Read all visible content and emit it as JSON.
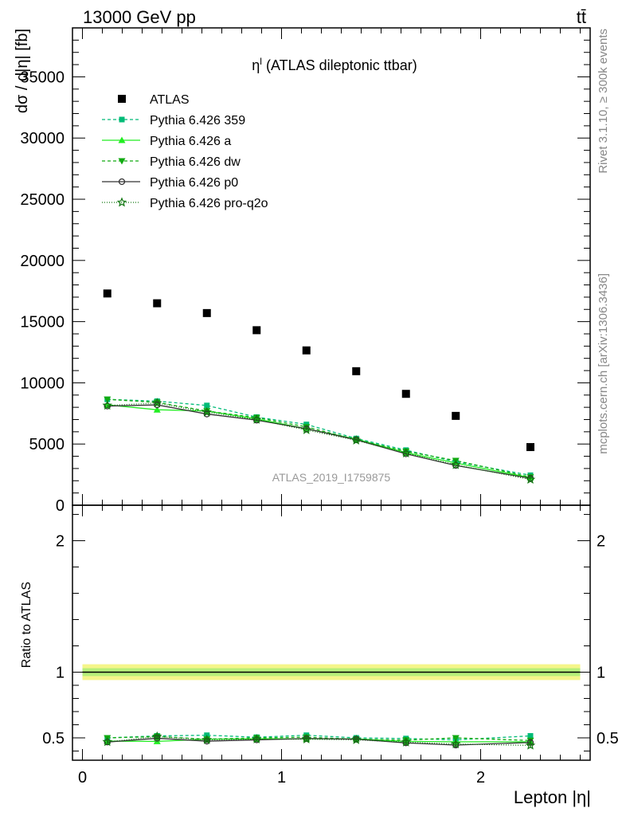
{
  "header": {
    "left": "13000 GeV pp",
    "right": "tt̄"
  },
  "side_text": {
    "rivet": "Rivet 3.1.10, ≥ 300k events",
    "mcplots": "mcplots.cern.ch [arXiv:1306.3436]"
  },
  "chart_data": {
    "type": "scatter",
    "title": "η^l (ATLAS dileptonic ttbar)",
    "title_main": "η",
    "title_sup": "l",
    "title_rest": " (ATLAS dileptonic ttbar)",
    "analysis_id": "ATLAS_2019_I1759875",
    "xlabel": "Lepton |η|",
    "ylabel": "dσ / d|η| [fb]",
    "ratio_ylabel": "Ratio to ATLAS",
    "xlim": [
      -0.05,
      2.55
    ],
    "ylim": [
      0,
      39000
    ],
    "ratio_ylim": [
      0.33,
      2.27
    ],
    "x_ticks": [
      {
        "value": 0,
        "label": "0"
      },
      {
        "value": 1,
        "label": "1"
      },
      {
        "value": 2,
        "label": "2"
      }
    ],
    "y_ticks": [
      {
        "value": 0,
        "label": "0"
      },
      {
        "value": 5000,
        "label": "5000"
      },
      {
        "value": 10000,
        "label": "10000"
      },
      {
        "value": 15000,
        "label": "15000"
      },
      {
        "value": 20000,
        "label": "20000"
      },
      {
        "value": 25000,
        "label": "25000"
      },
      {
        "value": 30000,
        "label": "30000"
      },
      {
        "value": 35000,
        "label": "35000"
      }
    ],
    "ratio_y_ticks": [
      {
        "value": 0.5,
        "label": "0.5"
      },
      {
        "value": 1,
        "label": "1"
      },
      {
        "value": 2,
        "label": "2"
      }
    ],
    "bin_edges": [
      0,
      0.25,
      0.5,
      0.75,
      1.0,
      1.25,
      1.5,
      1.75,
      2.0,
      2.5
    ],
    "x": [
      0.125,
      0.375,
      0.625,
      0.875,
      1.125,
      1.375,
      1.625,
      1.875,
      2.25
    ],
    "data": {
      "name": "ATLAS",
      "color": "#000000",
      "values": [
        17300,
        16500,
        15700,
        14300,
        12650,
        10950,
        9100,
        7300,
        4750
      ],
      "band_inner": 0.03,
      "band_outer": 0.06
    },
    "series": [
      {
        "name": "Pythia 6.426 359",
        "color": "#00bb77",
        "dash": "4,3",
        "marker": "square",
        "values": [
          8650,
          8500,
          8150,
          7200,
          6600,
          5450,
          4500,
          3550,
          2450
        ],
        "ratio": [
          0.5,
          0.515,
          0.52,
          0.505,
          0.52,
          0.5,
          0.495,
          0.485,
          0.515
        ],
        "ratio_err": [
          0.012,
          0.012,
          0.013,
          0.013,
          0.014,
          0.015,
          0.017,
          0.02,
          0.02
        ]
      },
      {
        "name": "Pythia 6.426 a",
        "color": "#22ee22",
        "dash": "",
        "marker": "triangle-up",
        "values": [
          8200,
          7800,
          7700,
          7050,
          6250,
          5400,
          4300,
          3450,
          2250
        ],
        "ratio": [
          0.475,
          0.473,
          0.49,
          0.493,
          0.493,
          0.493,
          0.473,
          0.47,
          0.47
        ],
        "ratio_err": [
          0.012,
          0.012,
          0.013,
          0.013,
          0.014,
          0.015,
          0.017,
          0.02,
          0.02
        ]
      },
      {
        "name": "Pythia 6.426 dw",
        "color": "#11aa11",
        "dash": "4,3",
        "marker": "triangle-down",
        "values": [
          8650,
          8400,
          7700,
          7150,
          6400,
          5350,
          4400,
          3650,
          2300
        ],
        "ratio": [
          0.5,
          0.51,
          0.49,
          0.5,
          0.505,
          0.49,
          0.483,
          0.5,
          0.48
        ],
        "ratio_err": [
          0.012,
          0.012,
          0.013,
          0.013,
          0.014,
          0.015,
          0.017,
          0.02,
          0.02
        ]
      },
      {
        "name": "Pythia 6.426 p0",
        "color": "#333333",
        "dash": "",
        "marker": "circle-open",
        "values": [
          8100,
          8200,
          7450,
          6950,
          6250,
          5350,
          4200,
          3250,
          2200
        ],
        "ratio": [
          0.468,
          0.497,
          0.475,
          0.485,
          0.495,
          0.49,
          0.462,
          0.445,
          0.465
        ],
        "ratio_err": [
          0.012,
          0.012,
          0.013,
          0.013,
          0.014,
          0.015,
          0.017,
          0.02,
          0.02
        ]
      },
      {
        "name": "Pythia 6.426 pro-q2o",
        "color": "#117711",
        "dash": "1,2",
        "marker": "star-open",
        "values": [
          8150,
          8350,
          7600,
          7000,
          6150,
          5300,
          4250,
          3300,
          2100
        ],
        "ratio": [
          0.47,
          0.51,
          0.485,
          0.49,
          0.49,
          0.485,
          0.467,
          0.453,
          0.443
        ],
        "ratio_err": [
          0.012,
          0.012,
          0.013,
          0.013,
          0.014,
          0.015,
          0.017,
          0.02,
          0.02
        ]
      }
    ]
  }
}
